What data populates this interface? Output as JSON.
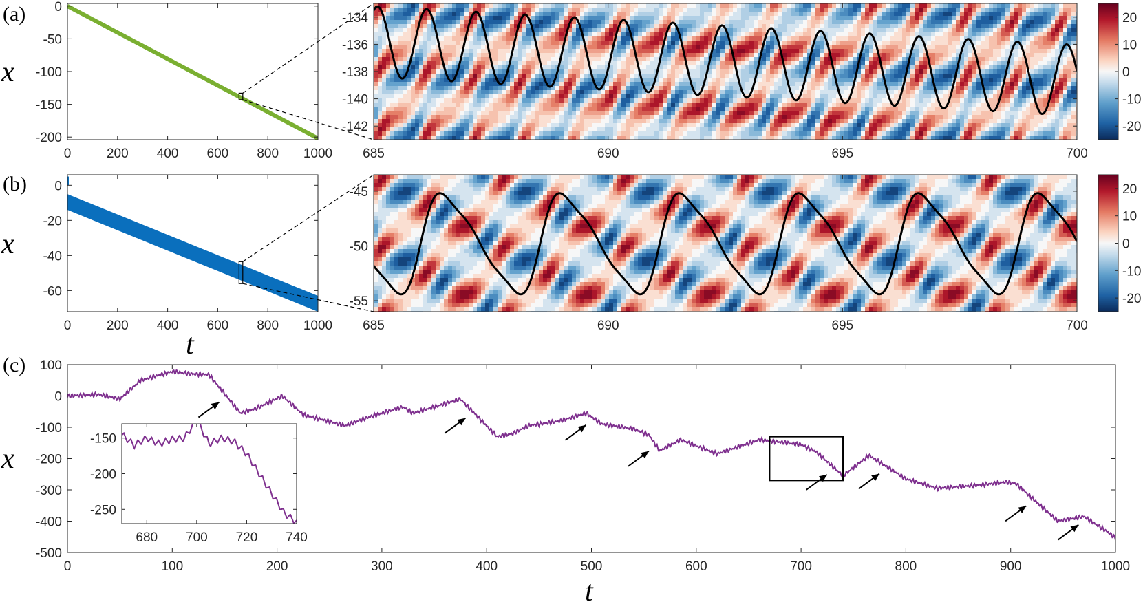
{
  "panel_labels": {
    "a": "(a)",
    "b": "(b)",
    "c": "(c)"
  },
  "axis_labels": {
    "x_a": "x",
    "x_b": "x",
    "x_c": "x",
    "t_b": "t",
    "t_c": "t"
  },
  "colors": {
    "green": "#7aaf31",
    "blue": "#0a6fbd",
    "purple": "#7e2f8e",
    "trajectory": "#000000"
  },
  "chart_data": [
    {
      "id": "a-left",
      "type": "line",
      "xlabel": "t",
      "ylabel": "x",
      "xlim": [
        0,
        1000
      ],
      "ylim": [
        -204,
        4
      ],
      "xticks": [
        "0",
        "200",
        "400",
        "600",
        "800",
        "1000"
      ],
      "xtick_values": [
        0,
        200,
        400,
        600,
        800,
        1000
      ],
      "yticks": [
        "0",
        "-50",
        "-100",
        "-150",
        "-200"
      ],
      "ytick_values": [
        0,
        -50,
        -100,
        -150,
        -200
      ],
      "series": [
        {
          "name": "trajectory",
          "x": [
            0,
            1000
          ],
          "y": [
            0,
            -202
          ]
        }
      ],
      "zoom_box": {
        "t": [
          685,
          700
        ],
        "x": [
          -143,
          -133
        ]
      }
    },
    {
      "id": "a-right",
      "type": "heatmap",
      "xlim": [
        685,
        700
      ],
      "ylim": [
        -143,
        -133
      ],
      "xticks": [
        "685",
        "690",
        "695",
        "700"
      ],
      "xtick_values": [
        685,
        690,
        695,
        700
      ],
      "yticks": [
        "-134",
        "-136",
        "-138",
        "-140",
        "-142"
      ],
      "ytick_values": [
        -134,
        -136,
        -138,
        -140,
        -142
      ],
      "colorbar": {
        "range": [
          -25,
          25
        ],
        "ticks": [
          "20",
          "10",
          "0",
          "-10",
          "-20"
        ],
        "tick_values": [
          20,
          10,
          0,
          -10,
          -20
        ]
      },
      "trajectory": {
        "center_start": -135.8,
        "drift_per_unit_t": -0.19,
        "amplitude": 2.6,
        "period": 1.05
      }
    },
    {
      "id": "b-left",
      "type": "area",
      "xlabel": "t",
      "ylabel": "x",
      "xlim": [
        0,
        1000
      ],
      "ylim": [
        -72,
        6
      ],
      "xticks": [
        "0",
        "200",
        "400",
        "600",
        "800",
        "1000"
      ],
      "xtick_values": [
        0,
        200,
        400,
        600,
        800,
        1000
      ],
      "yticks": [
        "0",
        "-20",
        "-40",
        "-60"
      ],
      "ytick_values": [
        0,
        -20,
        -40,
        -60
      ],
      "band": {
        "t": [
          0,
          1000
        ],
        "upper": [
          -5,
          -63
        ],
        "lower": [
          -14,
          -72
        ]
      },
      "zoom_box": {
        "t": [
          685,
          700
        ],
        "x": [
          -56,
          -43.5
        ]
      }
    },
    {
      "id": "b-right",
      "type": "heatmap",
      "xlim": [
        685,
        700
      ],
      "ylim": [
        -56,
        -43.5
      ],
      "xticks": [
        "685",
        "690",
        "695",
        "700"
      ],
      "xtick_values": [
        685,
        690,
        695,
        700
      ],
      "yticks": [
        "-45",
        "-50",
        "-55"
      ],
      "ytick_values": [
        -45,
        -50,
        -55
      ],
      "colorbar": {
        "range": [
          -25,
          25
        ],
        "ticks": [
          "20",
          "10",
          "0",
          "-10",
          "-20"
        ],
        "tick_values": [
          20,
          10,
          0,
          -10,
          -20
        ]
      },
      "trajectory": {
        "center": -49.8,
        "amplitude": 5.2,
        "period": 2.55
      }
    },
    {
      "id": "c-main",
      "type": "line",
      "xlabel": "t",
      "ylabel": "x",
      "xlim": [
        0,
        1000
      ],
      "ylim": [
        -500,
        100
      ],
      "xticks": [
        "0",
        "100",
        "200",
        "300",
        "400",
        "500",
        "600",
        "700",
        "800",
        "900",
        "1000"
      ],
      "xtick_values": [
        0,
        100,
        200,
        300,
        400,
        500,
        600,
        700,
        800,
        900,
        1000
      ],
      "yticks": [
        "100",
        "0",
        "-100",
        "-200",
        "-300",
        "-400",
        "-500"
      ],
      "ytick_values": [
        100,
        0,
        -100,
        -200,
        -300,
        -400,
        -500
      ],
      "series": [
        {
          "name": "trajectory",
          "x": [
            0,
            30,
            50,
            70,
            100,
            120,
            135,
            165,
            180,
            205,
            225,
            265,
            290,
            320,
            330,
            375,
            410,
            425,
            440,
            470,
            495,
            510,
            540,
            555,
            565,
            585,
            620,
            660,
            700,
            715,
            740,
            765,
            800,
            830,
            870,
            895,
            905,
            945,
            970,
            995,
            1000
          ],
          "y": [
            0,
            5,
            -10,
            50,
            78,
            70,
            68,
            -55,
            -40,
            0,
            -60,
            -95,
            -65,
            -35,
            -55,
            -10,
            -130,
            -120,
            -95,
            -80,
            -55,
            -90,
            -105,
            -125,
            -175,
            -140,
            -185,
            -140,
            -155,
            -180,
            -255,
            -190,
            -265,
            -295,
            -285,
            -275,
            -280,
            -400,
            -385,
            -440,
            -455
          ]
        }
      ],
      "arrows_t": [
        150,
        385,
        500,
        560,
        730,
        780,
        920,
        970
      ],
      "inset_box": {
        "t": [
          670,
          740
        ],
        "x": [
          -270,
          -130
        ]
      }
    },
    {
      "id": "c-inset",
      "type": "line",
      "xlim": [
        670,
        740
      ],
      "ylim": [
        -270,
        -130
      ],
      "xticks": [
        "680",
        "700",
        "720",
        "740"
      ],
      "xtick_values": [
        680,
        700,
        720,
        740
      ],
      "yticks": [
        "-150",
        "-200",
        "-250"
      ],
      "ytick_values": [
        -150,
        -200,
        -250
      ],
      "series": [
        {
          "name": "trajectory",
          "x": [
            670,
            675,
            680,
            685,
            690,
            695,
            700,
            705,
            710,
            715,
            720,
            725,
            730,
            735,
            740
          ],
          "y": [
            -145,
            -160,
            -150,
            -158,
            -152,
            -150,
            -125,
            -158,
            -150,
            -155,
            -172,
            -200,
            -228,
            -255,
            -268
          ]
        }
      ]
    }
  ]
}
